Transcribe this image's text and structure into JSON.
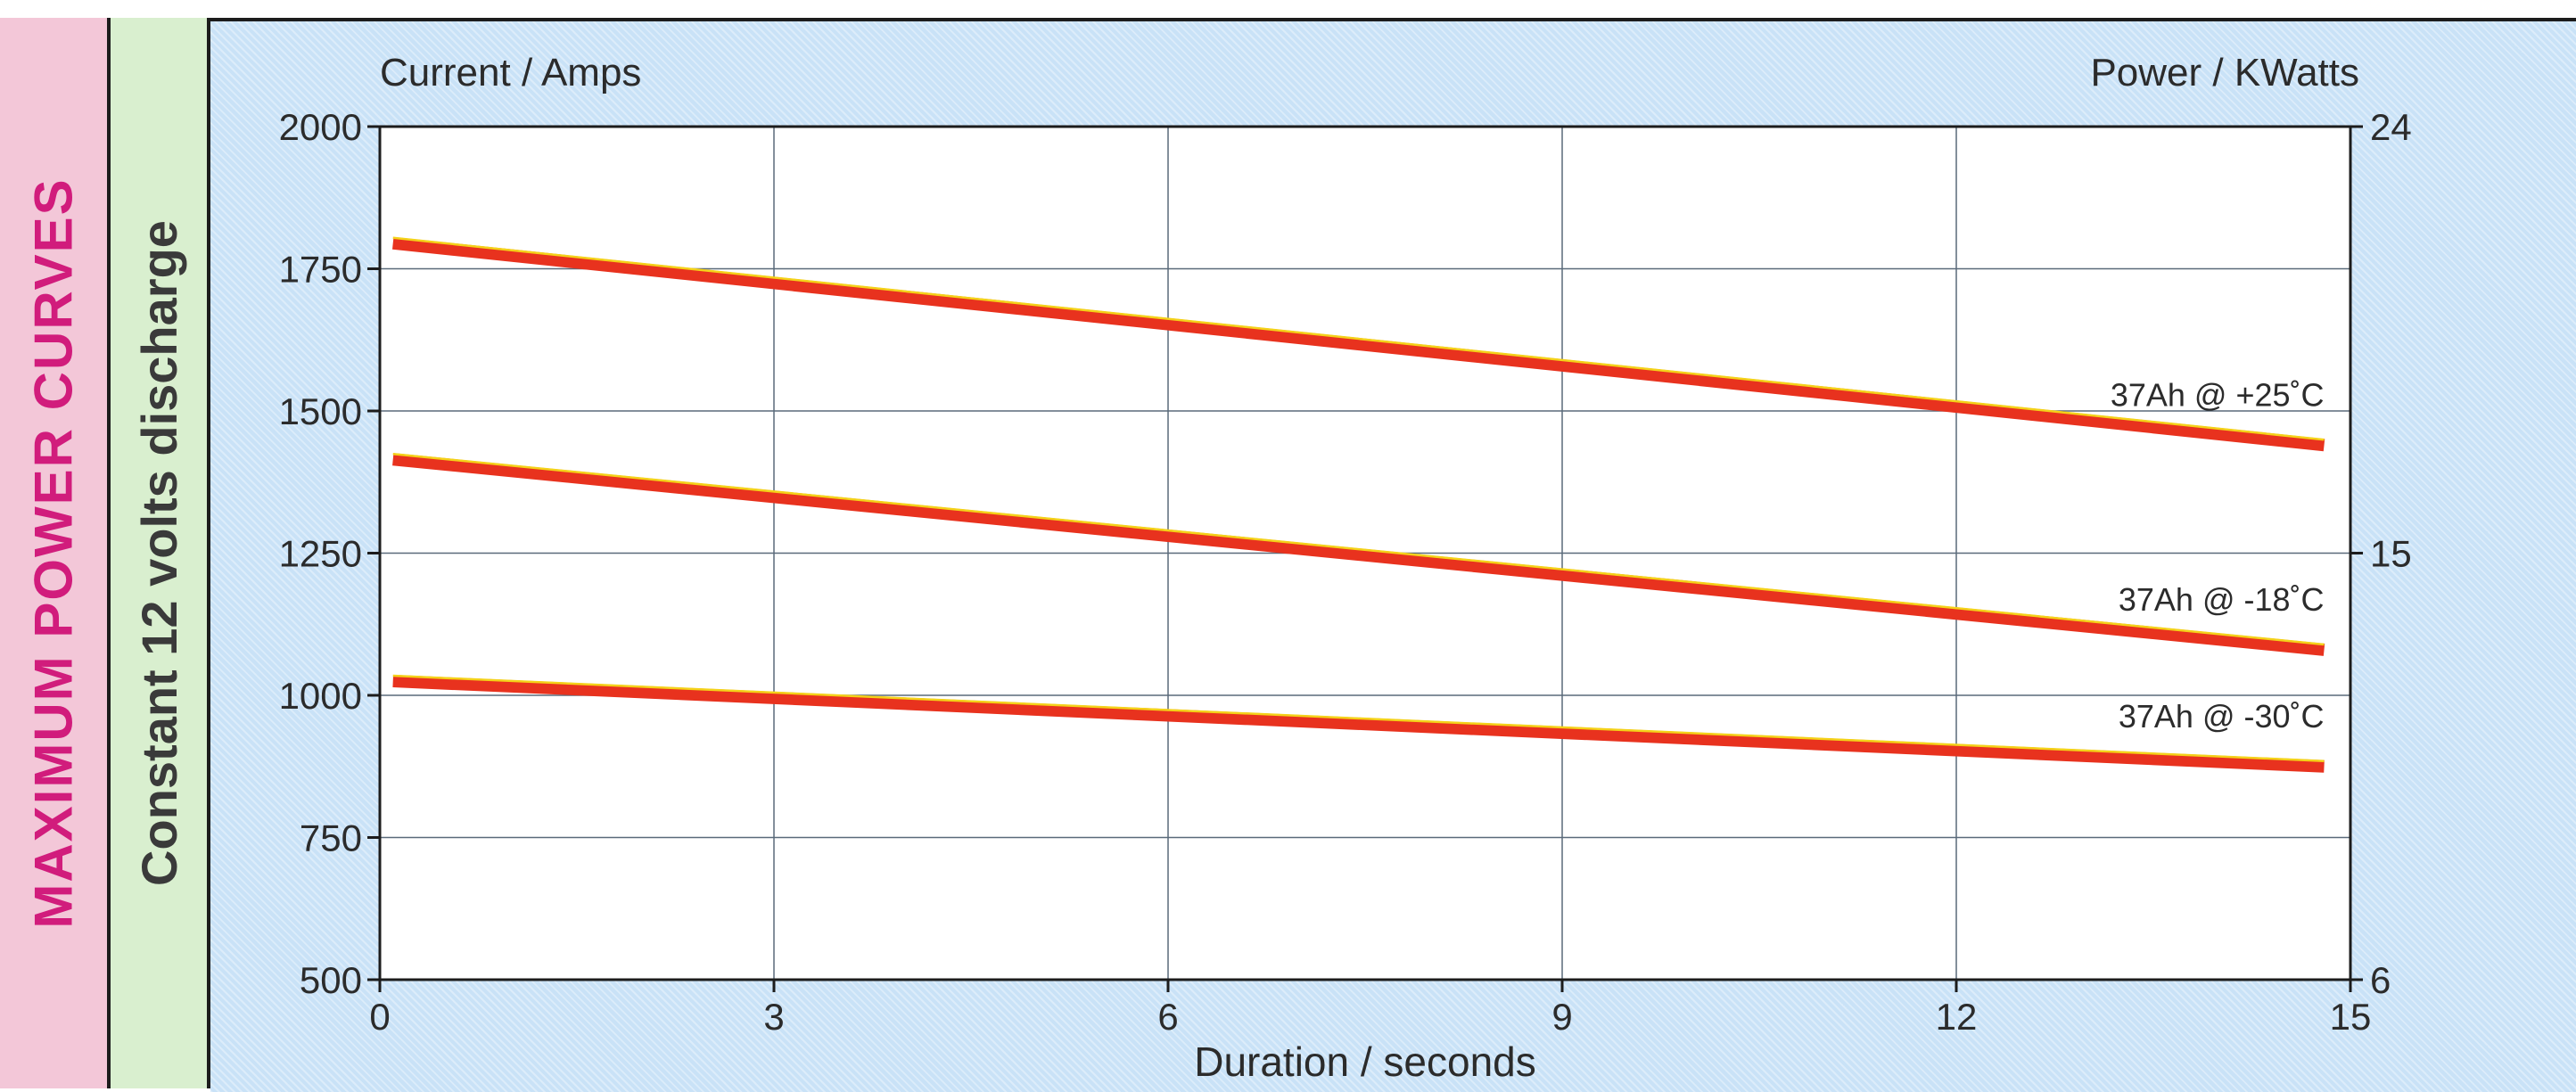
{
  "side_title": "MAXIMUM POWER CURVES",
  "side_subtitle": "Constant 12 volts discharge",
  "colors": {
    "line": "#e8321e",
    "line_highlight": "#f4d219",
    "grid": "#5a6a7a",
    "axis": "#1c1c1c",
    "text": "#2b2b2b"
  },
  "chart_data": {
    "type": "line",
    "title": "",
    "xlabel": "Duration / seconds",
    "ylabel": "Current / Amps",
    "y2label": "Power / KWatts",
    "xlim": [
      0,
      15
    ],
    "ylim": [
      500,
      2000
    ],
    "y2lim": [
      6,
      24
    ],
    "xticks": [
      "0",
      "3",
      "6",
      "9",
      "12",
      "15"
    ],
    "yticks": [
      "500",
      "750",
      "1000",
      "1250",
      "1500",
      "1750",
      "2000"
    ],
    "y2ticks": [
      "6",
      "15",
      "24"
    ],
    "grid": true,
    "series": [
      {
        "name": "37Ah @ +25˚C",
        "x": [
          0.1,
          14.8
        ],
        "y": [
          1795,
          1440
        ]
      },
      {
        "name": "37Ah @ -18˚C",
        "x": [
          0.1,
          14.8
        ],
        "y": [
          1415,
          1080
        ]
      },
      {
        "name": "37Ah @ -30˚C",
        "x": [
          0.1,
          14.8
        ],
        "y": [
          1025,
          875
        ]
      }
    ]
  }
}
